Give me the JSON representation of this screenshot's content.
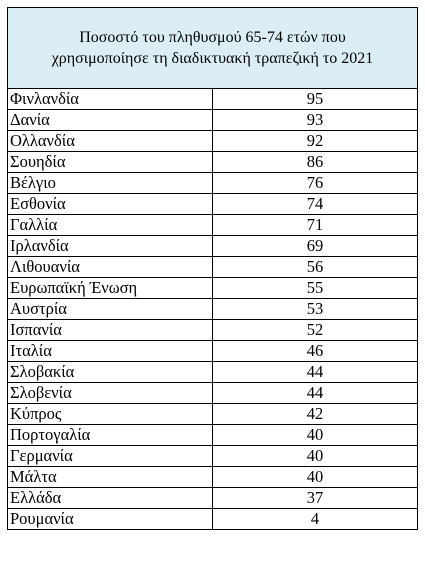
{
  "table": {
    "title_line1": "Ποσοστό του πληθυσμού 65-74 ετών που",
    "title_line2": "χρησιμοποίησε τη διαδικτυακή τραπεζική το 2021",
    "rows": [
      {
        "country": "Φινλανδία",
        "value": "95"
      },
      {
        "country": "Δανία",
        "value": "93"
      },
      {
        "country": "Ολλανδία",
        "value": "92"
      },
      {
        "country": "Σουηδία",
        "value": "86"
      },
      {
        "country": "Βέλγιο",
        "value": "76"
      },
      {
        "country": "Εσθονία",
        "value": "74"
      },
      {
        "country": "Γαλλία",
        "value": "71"
      },
      {
        "country": "Ιρλανδία",
        "value": "69"
      },
      {
        "country": "Λιθουανία",
        "value": "56"
      },
      {
        "country": "Ευρωπαϊκή Ένωση",
        "value": "55"
      },
      {
        "country": "Αυστρία",
        "value": "53"
      },
      {
        "country": "Ισπανία",
        "value": "52"
      },
      {
        "country": "Ιταλία",
        "value": "46"
      },
      {
        "country": "Σλοβακία",
        "value": "44"
      },
      {
        "country": "Σλοβενία",
        "value": "44"
      },
      {
        "country": "Κύπρος",
        "value": "42"
      },
      {
        "country": "Πορτογαλία",
        "value": "40"
      },
      {
        "country": "Γερμανία",
        "value": "40"
      },
      {
        "country": "Μάλτα",
        "value": "40"
      },
      {
        "country": "Ελλάδα",
        "value": "37"
      },
      {
        "country": "Ρουμανία",
        "value": "4"
      }
    ]
  },
  "colors": {
    "header_background": "#dbeef3",
    "border": "#000000",
    "text": "#000000"
  }
}
